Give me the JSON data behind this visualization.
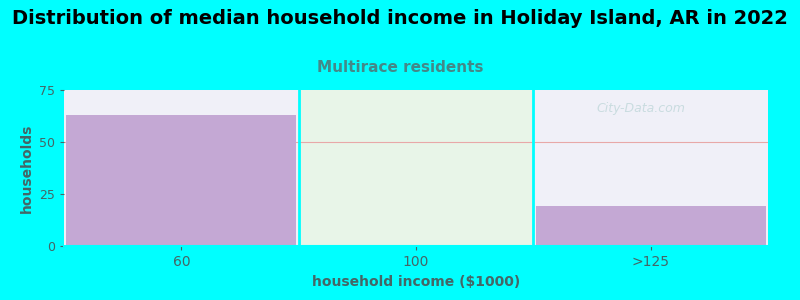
{
  "title": "Distribution of median household income in Holiday Island, AR in 2022",
  "subtitle": "Multirace residents",
  "categories": [
    "60",
    "100",
    ">125"
  ],
  "values": [
    63,
    0,
    19
  ],
  "bar_color": "#c4a8d4",
  "bg_color": "#00ffff",
  "plot_bg_color_left": "#f0f0f8",
  "plot_bg_color_mid": "#e8f5e8",
  "plot_bg_color_right": "#f0f0f8",
  "xlabel": "household income ($1000)",
  "ylabel": "households",
  "ylim": [
    0,
    75
  ],
  "yticks": [
    0,
    25,
    50,
    75
  ],
  "title_fontsize": 14,
  "subtitle_fontsize": 11,
  "subtitle_color": "#448888",
  "axis_label_color": "#446666",
  "tick_color": "#446666",
  "watermark": "City-Data.com",
  "grid_color": "#e8a8a8"
}
